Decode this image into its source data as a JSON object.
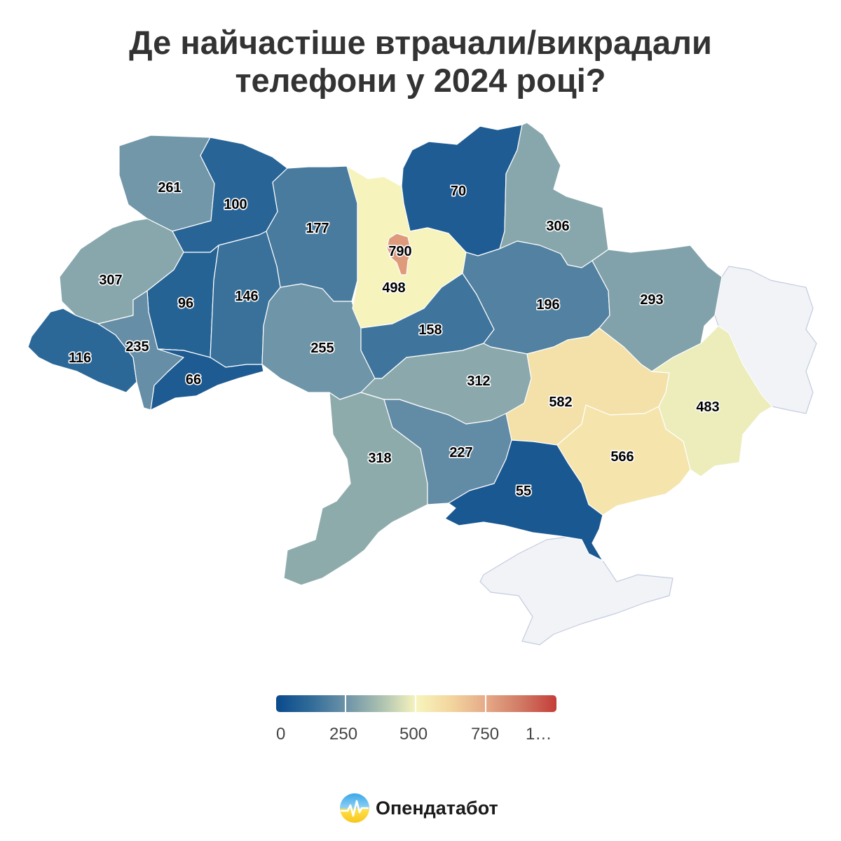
{
  "title": {
    "line1": "Де найчастіше втрачали/викрадали",
    "line2": "телефони у 2024 році?"
  },
  "regions": [
    {
      "id": "volyn",
      "value": 261
    },
    {
      "id": "rivne",
      "value": 100
    },
    {
      "id": "zhytomyr",
      "value": 177
    },
    {
      "id": "kyiv-oblast",
      "value": 498
    },
    {
      "id": "kyiv-city",
      "value": 790
    },
    {
      "id": "chernihiv",
      "value": 70
    },
    {
      "id": "sumy",
      "value": 306
    },
    {
      "id": "lviv",
      "value": 307
    },
    {
      "id": "ternopil",
      "value": 96
    },
    {
      "id": "khmelnytskyi",
      "value": 146
    },
    {
      "id": "vinnytsia",
      "value": 255
    },
    {
      "id": "cherkasy",
      "value": 158
    },
    {
      "id": "poltava",
      "value": 196
    },
    {
      "id": "kharkiv",
      "value": 293
    },
    {
      "id": "zakarpattia",
      "value": 116
    },
    {
      "id": "ivano-frankivsk",
      "value": 235
    },
    {
      "id": "chernivtsi",
      "value": 66
    },
    {
      "id": "kirovohrad",
      "value": 312
    },
    {
      "id": "dnipropetrovsk",
      "value": 582
    },
    {
      "id": "donetsk",
      "value": 483
    },
    {
      "id": "zaporizhzhia",
      "value": 566
    },
    {
      "id": "odesa",
      "value": 318
    },
    {
      "id": "mykolaiv",
      "value": 227
    },
    {
      "id": "kherson",
      "value": 55
    },
    {
      "id": "luhansk",
      "value": null
    },
    {
      "id": "crimea",
      "value": null
    }
  ],
  "legend": {
    "ticks": [
      "0",
      "250",
      "500",
      "750",
      "1…"
    ]
  },
  "brand": {
    "name": "Опендатабот",
    "logo": "opendatabot-logo-icon"
  },
  "colors": {
    "no_data": "#f1f3f7",
    "occupied_border": "#c4cbe0",
    "text": "#333333",
    "scale": [
      "#0a4a8c",
      "#6d93a8",
      "#f7f4bd",
      "#e5a987",
      "#c43d38"
    ]
  }
}
